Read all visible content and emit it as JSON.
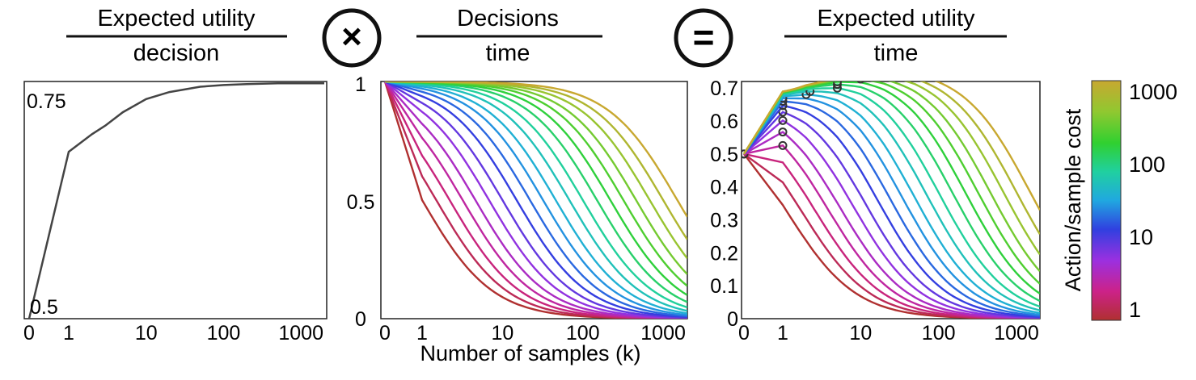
{
  "headers": {
    "panel1_num": "Expected utility",
    "panel1_den": "decision",
    "times_symbol": "×",
    "panel2_num": "Decisions",
    "panel2_den": "time",
    "equals_symbol": "=",
    "panel3_num": "Expected utility",
    "panel3_den": "time"
  },
  "colorbar": {
    "label": "Action/sample cost",
    "ticks": [
      "1",
      "10",
      "100",
      "1000"
    ],
    "colors": [
      "#b03030",
      "#cc2288",
      "#9b30e0",
      "#3040e0",
      "#20a8e0",
      "#20d0a0",
      "#30d030",
      "#90c830",
      "#c8a830"
    ]
  },
  "chart_data": [
    {
      "type": "line",
      "panel": "left",
      "title": "Expected utility / decision",
      "xlabel": "",
      "ylabel": "",
      "xscale": "log (0, 1, 10, 100, 1000)",
      "xticks": [
        "0",
        "1",
        "10",
        "100",
        "1000"
      ],
      "yticks": [
        "0.5",
        "0.75"
      ],
      "ylim": [
        0.5,
        0.77
      ],
      "series": [
        {
          "x": [
            0,
            1,
            2,
            3,
            5,
            10,
            20,
            50,
            100,
            200,
            500,
            1000,
            2000
          ],
          "y": [
            0.5,
            0.69,
            0.71,
            0.72,
            0.735,
            0.75,
            0.758,
            0.764,
            0.766,
            0.767,
            0.768,
            0.768,
            0.768
          ]
        }
      ]
    },
    {
      "type": "line",
      "panel": "middle",
      "title": "Decisions / time",
      "xlabel": "Number of samples (k)",
      "ylabel": "",
      "xticks": [
        "0",
        "1",
        "10",
        "100",
        "1000"
      ],
      "yticks": [
        "0",
        "0.5",
        "1"
      ],
      "ylim": [
        0,
        1
      ],
      "xlim": [
        0,
        2000
      ],
      "color_by": "Action/sample cost",
      "curve_family": {
        "costs": [
          1,
          1.5,
          2.2,
          3.2,
          4.6,
          6.8,
          10,
          15,
          22,
          32,
          46,
          68,
          100,
          150,
          220,
          320,
          460,
          680,
          1000,
          1500
        ],
        "formula": "decisions_per_time = cost / (cost + k)"
      }
    },
    {
      "type": "line",
      "panel": "right",
      "title": "Expected utility / time",
      "xlabel": "",
      "ylabel": "",
      "xticks": [
        "0",
        "1",
        "10",
        "100",
        "1000"
      ],
      "yticks": [
        "0",
        "0.1",
        "0.2",
        "0.3",
        "0.4",
        "0.5",
        "0.6",
        "0.7"
      ],
      "ylim": [
        0,
        0.72
      ],
      "xlim": [
        0,
        2000
      ],
      "color_by": "Action/sample cost",
      "markers": "circles at each curve's maximum",
      "curve_family": {
        "costs": [
          1,
          1.5,
          2.2,
          3.2,
          4.6,
          6.8,
          10,
          15,
          22,
          32,
          46,
          68,
          100,
          150,
          220,
          320,
          460,
          680,
          1000,
          1500
        ],
        "formula": "expected_utility_per_decision(k) × cost / (cost + k)"
      }
    }
  ]
}
